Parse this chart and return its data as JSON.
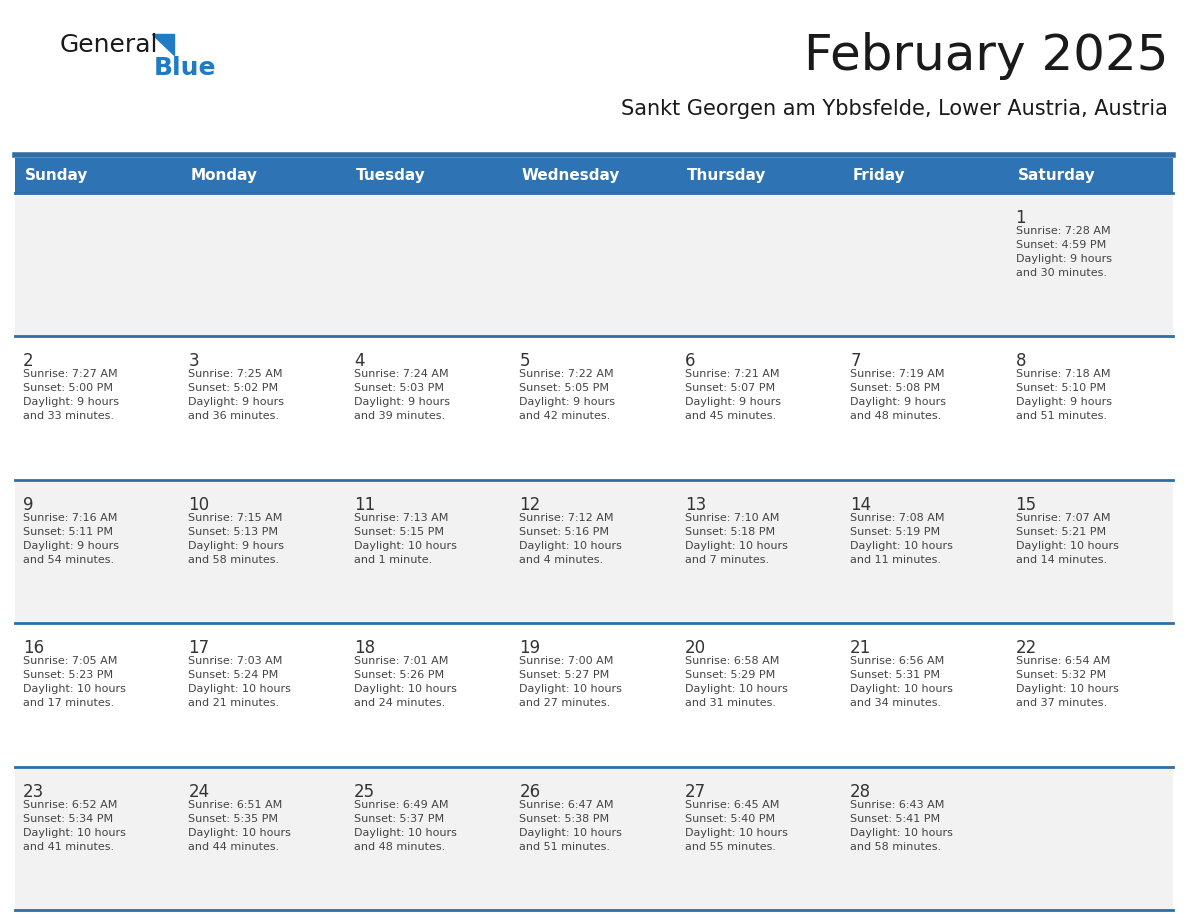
{
  "title": "February 2025",
  "subtitle": "Sankt Georgen am Ybbsfelde, Lower Austria, Austria",
  "days_of_week": [
    "Sunday",
    "Monday",
    "Tuesday",
    "Wednesday",
    "Thursday",
    "Friday",
    "Saturday"
  ],
  "header_bg": "#2E74B5",
  "header_text": "#FFFFFF",
  "cell_bg_odd": "#F2F2F2",
  "cell_bg_even": "#FFFFFF",
  "separator_color": "#2E6EA6",
  "day_number_color": "#333333",
  "cell_text_color": "#444444",
  "title_color": "#1a1a1a",
  "subtitle_color": "#1a1a1a",
  "logo_general_color": "#1a1a1a",
  "logo_blue_color": "#1E7BC4",
  "calendar_data": [
    [
      null,
      null,
      null,
      null,
      null,
      null,
      {
        "day": "1",
        "sunrise": "7:28 AM",
        "sunset": "4:59 PM",
        "daylight": "9 hours and 30 minutes."
      }
    ],
    [
      {
        "day": "2",
        "sunrise": "7:27 AM",
        "sunset": "5:00 PM",
        "daylight": "9 hours and 33 minutes."
      },
      {
        "day": "3",
        "sunrise": "7:25 AM",
        "sunset": "5:02 PM",
        "daylight": "9 hours and 36 minutes."
      },
      {
        "day": "4",
        "sunrise": "7:24 AM",
        "sunset": "5:03 PM",
        "daylight": "9 hours and 39 minutes."
      },
      {
        "day": "5",
        "sunrise": "7:22 AM",
        "sunset": "5:05 PM",
        "daylight": "9 hours and 42 minutes."
      },
      {
        "day": "6",
        "sunrise": "7:21 AM",
        "sunset": "5:07 PM",
        "daylight": "9 hours and 45 minutes."
      },
      {
        "day": "7",
        "sunrise": "7:19 AM",
        "sunset": "5:08 PM",
        "daylight": "9 hours and 48 minutes."
      },
      {
        "day": "8",
        "sunrise": "7:18 AM",
        "sunset": "5:10 PM",
        "daylight": "9 hours and 51 minutes."
      }
    ],
    [
      {
        "day": "9",
        "sunrise": "7:16 AM",
        "sunset": "5:11 PM",
        "daylight": "9 hours and 54 minutes."
      },
      {
        "day": "10",
        "sunrise": "7:15 AM",
        "sunset": "5:13 PM",
        "daylight": "9 hours and 58 minutes."
      },
      {
        "day": "11",
        "sunrise": "7:13 AM",
        "sunset": "5:15 PM",
        "daylight": "10 hours and 1 minute."
      },
      {
        "day": "12",
        "sunrise": "7:12 AM",
        "sunset": "5:16 PM",
        "daylight": "10 hours and 4 minutes."
      },
      {
        "day": "13",
        "sunrise": "7:10 AM",
        "sunset": "5:18 PM",
        "daylight": "10 hours and 7 minutes."
      },
      {
        "day": "14",
        "sunrise": "7:08 AM",
        "sunset": "5:19 PM",
        "daylight": "10 hours and 11 minutes."
      },
      {
        "day": "15",
        "sunrise": "7:07 AM",
        "sunset": "5:21 PM",
        "daylight": "10 hours and 14 minutes."
      }
    ],
    [
      {
        "day": "16",
        "sunrise": "7:05 AM",
        "sunset": "5:23 PM",
        "daylight": "10 hours and 17 minutes."
      },
      {
        "day": "17",
        "sunrise": "7:03 AM",
        "sunset": "5:24 PM",
        "daylight": "10 hours and 21 minutes."
      },
      {
        "day": "18",
        "sunrise": "7:01 AM",
        "sunset": "5:26 PM",
        "daylight": "10 hours and 24 minutes."
      },
      {
        "day": "19",
        "sunrise": "7:00 AM",
        "sunset": "5:27 PM",
        "daylight": "10 hours and 27 minutes."
      },
      {
        "day": "20",
        "sunrise": "6:58 AM",
        "sunset": "5:29 PM",
        "daylight": "10 hours and 31 minutes."
      },
      {
        "day": "21",
        "sunrise": "6:56 AM",
        "sunset": "5:31 PM",
        "daylight": "10 hours and 34 minutes."
      },
      {
        "day": "22",
        "sunrise": "6:54 AM",
        "sunset": "5:32 PM",
        "daylight": "10 hours and 37 minutes."
      }
    ],
    [
      {
        "day": "23",
        "sunrise": "6:52 AM",
        "sunset": "5:34 PM",
        "daylight": "10 hours and 41 minutes."
      },
      {
        "day": "24",
        "sunrise": "6:51 AM",
        "sunset": "5:35 PM",
        "daylight": "10 hours and 44 minutes."
      },
      {
        "day": "25",
        "sunrise": "6:49 AM",
        "sunset": "5:37 PM",
        "daylight": "10 hours and 48 minutes."
      },
      {
        "day": "26",
        "sunrise": "6:47 AM",
        "sunset": "5:38 PM",
        "daylight": "10 hours and 51 minutes."
      },
      {
        "day": "27",
        "sunrise": "6:45 AM",
        "sunset": "5:40 PM",
        "daylight": "10 hours and 55 minutes."
      },
      {
        "day": "28",
        "sunrise": "6:43 AM",
        "sunset": "5:41 PM",
        "daylight": "10 hours and 58 minutes."
      },
      null
    ]
  ]
}
